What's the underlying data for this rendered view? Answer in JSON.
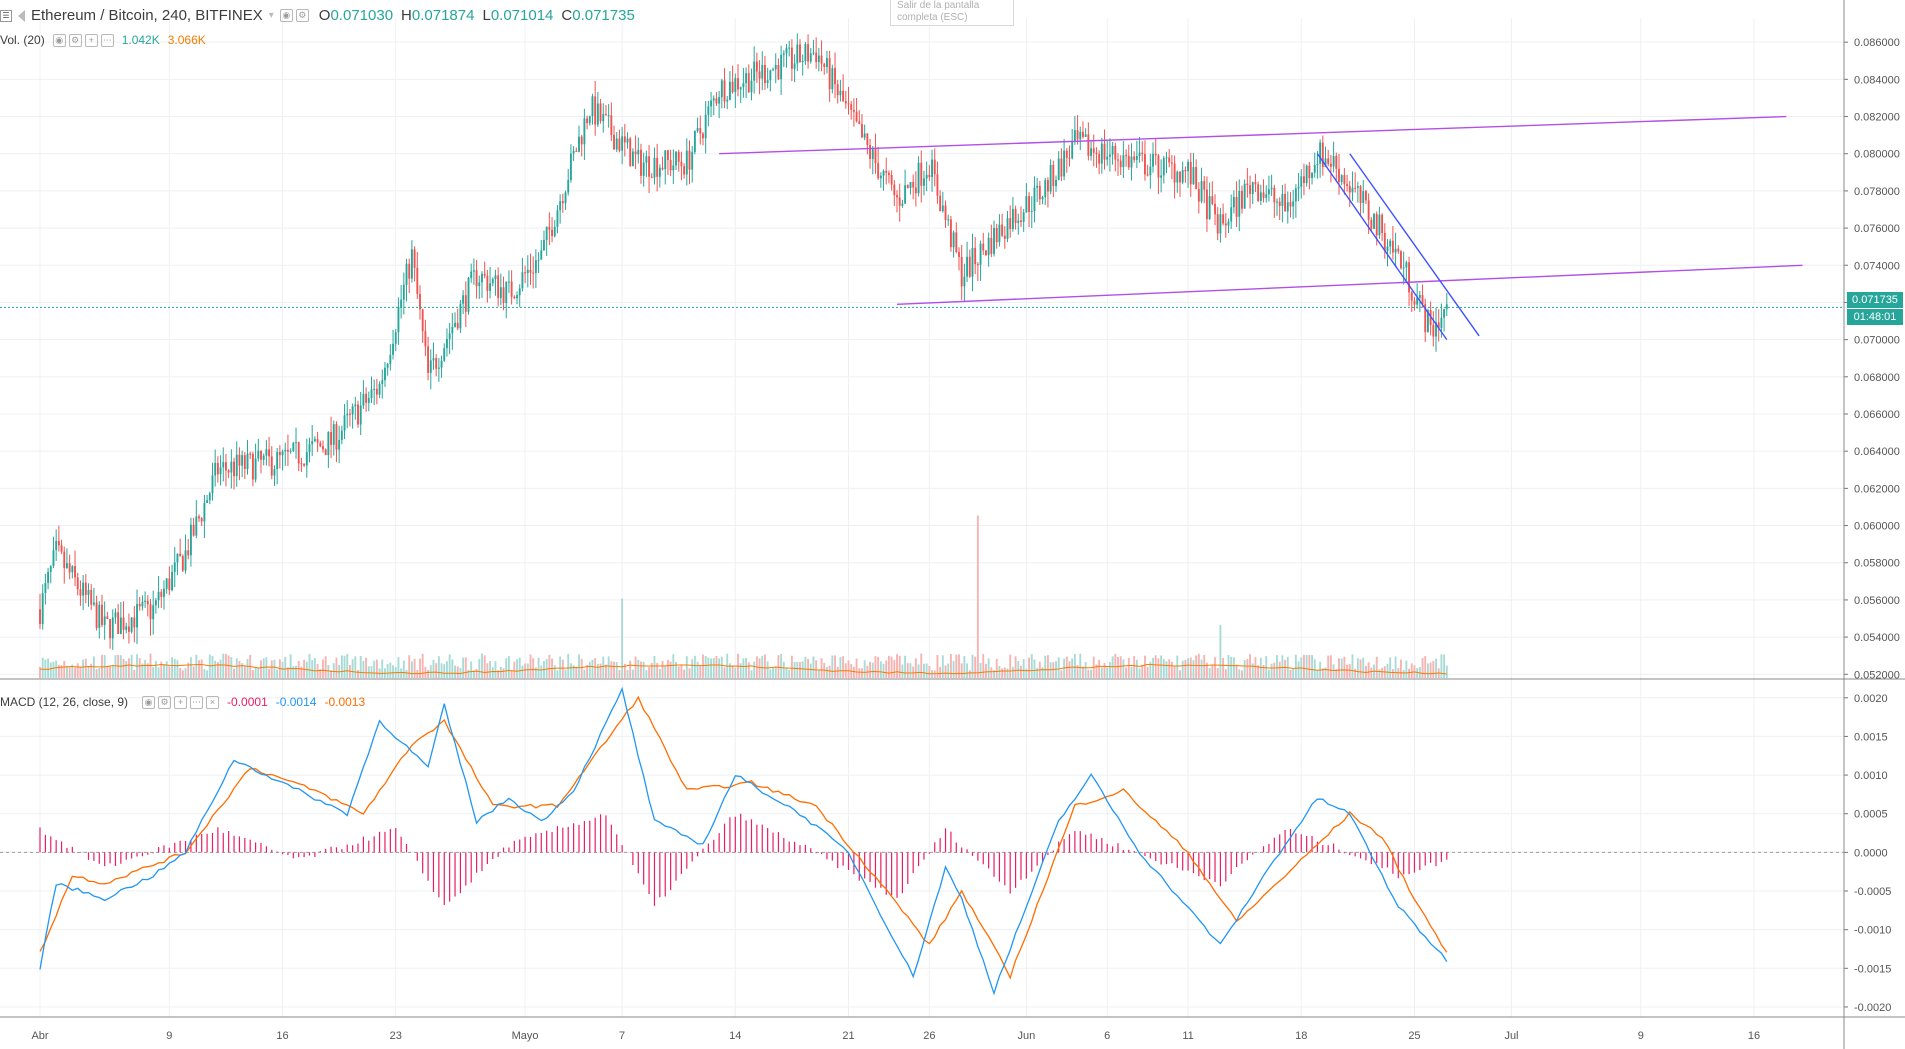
{
  "header": {
    "menu_icon": "hamburger-icon",
    "symbol": "Ethereum / Bitcoin, 240, BITFINEX",
    "ohlc": {
      "o_label": "O",
      "o": "0.071030",
      "h_label": "H",
      "h": "0.071874",
      "l_label": "L",
      "l": "0.071014",
      "c_label": "C",
      "c": "0.071735"
    }
  },
  "volume_legend": {
    "title": "Vol. (20)",
    "v1": "1.042K",
    "v2": "3.066K"
  },
  "macd_legend": {
    "title": "MACD (12, 26, close, 9)",
    "hist": "-0.0001",
    "macd": "-0.0014",
    "signal": "-0.0013"
  },
  "fullscreen_tooltip": {
    "line1": "Salir de la pantalla",
    "line2": "completa (ESC)"
  },
  "last_price": {
    "value": "0.071735",
    "countdown": "01:48:01"
  },
  "colors": {
    "up": "#26a69a",
    "down": "#ef5350",
    "trendline": "#b34ee8",
    "channel": "#3f51ff",
    "macd": "#2196f3",
    "signal": "#ff6d00",
    "histogram": "#e91e63",
    "grid": "#eef0f3"
  },
  "chart_data": [
    {
      "type": "candlestick",
      "title": "Ethereum / Bitcoin, 240, BITFINEX",
      "x_tick_labels": [
        "Abr",
        "9",
        "16",
        "23",
        "Mayo",
        "7",
        "14",
        "21",
        "26",
        "Jun",
        "6",
        "11",
        "18",
        "25",
        "Jul",
        "9",
        "16"
      ],
      "y_ticks": [
        "0.086000",
        "0.084000",
        "0.082000",
        "0.080000",
        "0.078000",
        "0.076000",
        "0.074000",
        "0.072000",
        "0.070000",
        "0.068000",
        "0.066000",
        "0.064000",
        "0.062000",
        "0.060000",
        "0.058000",
        "0.056000",
        "0.054000",
        "0.052000"
      ],
      "ylim": [
        0.0518,
        0.0873
      ],
      "grid": true,
      "trend_anchors_date_close": [
        [
          "Abr 1",
          0.0555
        ],
        [
          "Abr 2",
          0.0585
        ],
        [
          "Abr 5",
          0.0545
        ],
        [
          "Abr 8",
          0.0555
        ],
        [
          "Abr 10",
          0.0585
        ],
        [
          "Abr 12",
          0.063
        ],
        [
          "Abr 16",
          0.0635
        ],
        [
          "Abr 19",
          0.0645
        ],
        [
          "Abr 22",
          0.0675
        ],
        [
          "Abr 24",
          0.0745
        ],
        [
          "Abr 25",
          0.068
        ],
        [
          "Abr 28",
          0.0735
        ],
        [
          "Abr 30",
          0.0725
        ],
        [
          "May 2",
          0.0745
        ],
        [
          "May 5",
          0.0825
        ],
        [
          "May 8",
          0.0795
        ],
        [
          "May 11",
          0.0795
        ],
        [
          "May 13",
          0.0835
        ],
        [
          "May 16",
          0.0845
        ],
        [
          "May 19",
          0.0855
        ],
        [
          "May 22",
          0.0805
        ],
        [
          "May 24",
          0.0775
        ],
        [
          "May 26",
          0.0795
        ],
        [
          "May 28",
          0.0735
        ],
        [
          "May 31",
          0.0765
        ],
        [
          "Jun 2",
          0.078
        ],
        [
          "Jun 4",
          0.0805
        ],
        [
          "Jun 8",
          0.0795
        ],
        [
          "Jun 11",
          0.079
        ],
        [
          "Jun 13",
          0.076
        ],
        [
          "Jun 15",
          0.0785
        ],
        [
          "Jun 17",
          0.077
        ],
        [
          "Jun 19",
          0.08
        ],
        [
          "Jun 20",
          0.0795
        ],
        [
          "Jun 22",
          0.077
        ],
        [
          "Jun 24",
          0.0745
        ],
        [
          "Jun 26",
          0.0705
        ],
        [
          "Jun 27",
          0.0717
        ]
      ],
      "volume_spikes": [
        [
          "May 29",
          8600
        ],
        [
          "May 7",
          4200
        ],
        [
          "Jun 13",
          2800
        ]
      ],
      "annotations": [
        {
          "kind": "trend_line",
          "from": [
            "May 13",
            0.08
          ],
          "to": [
            "Jul 18",
            0.082
          ],
          "color": "#b34ee8"
        },
        {
          "kind": "trend_line",
          "from": [
            "May 24",
            0.0719
          ],
          "to": [
            "Jul 19",
            0.074
          ],
          "color": "#b34ee8"
        },
        {
          "kind": "channel_line",
          "from": [
            "Jun 19",
            0.08
          ],
          "to": [
            "Jun 27",
            0.07
          ],
          "color": "#3f51ff"
        },
        {
          "kind": "channel_line",
          "from": [
            "Jun 21",
            0.08
          ],
          "to": [
            "Jun 29",
            0.0702
          ],
          "color": "#3f51ff"
        }
      ],
      "last_price_line": 0.071735
    },
    {
      "type": "line",
      "title": "MACD (12, 26, close, 9)",
      "y_ticks": [
        "0.0020",
        "0.0015",
        "0.0010",
        "0.0005",
        "0.0000",
        "-0.0005",
        "-0.0010",
        "-0.0015",
        "-0.0020"
      ],
      "ylim": [
        -0.00213,
        0.00223
      ],
      "series": [
        {
          "name": "MACD",
          "anchors_date_value": [
            [
              "Abr 1",
              -0.0015
            ],
            [
              "Abr 2",
              -0.0004
            ],
            [
              "Abr 5",
              -0.0006
            ],
            [
              "Abr 8",
              -0.0003
            ],
            [
              "Abr 10",
              0.0
            ],
            [
              "Abr 13",
              0.0012
            ],
            [
              "Abr 16",
              0.0009
            ],
            [
              "Abr 20",
              0.0005
            ],
            [
              "Abr 22",
              0.0017
            ],
            [
              "Abr 25",
              0.0011
            ],
            [
              "Abr 26",
              0.0019
            ],
            [
              "Abr 28",
              0.0004
            ],
            [
              "Abr 30",
              0.0007
            ],
            [
              "May 2",
              0.0004
            ],
            [
              "May 4",
              0.0008
            ],
            [
              "May 7",
              0.0021
            ],
            [
              "May 9",
              0.0004
            ],
            [
              "May 12",
              0.0001
            ],
            [
              "May 14",
              0.001
            ],
            [
              "May 18",
              0.0005
            ],
            [
              "May 21",
              0.0
            ],
            [
              "May 25",
              -0.0016
            ],
            [
              "May 27",
              -0.0002
            ],
            [
              "May 28",
              -0.0006
            ],
            [
              "May 30",
              -0.0018
            ],
            [
              "Jun 3",
              0.0004
            ],
            [
              "Jun 5",
              0.001
            ],
            [
              "Jun 8",
              0.0
            ],
            [
              "Jun 13",
              -0.0012
            ],
            [
              "Jun 16",
              -0.0002
            ],
            [
              "Jun 19",
              0.0007
            ],
            [
              "Jun 21",
              0.0005
            ],
            [
              "Jun 24",
              -0.0007
            ],
            [
              "Jun 27",
              -0.0014
            ]
          ]
        },
        {
          "name": "Signal",
          "anchors_date_value": [
            [
              "Abr 1",
              -0.0013
            ],
            [
              "Abr 3",
              -0.0003
            ],
            [
              "Abr 5",
              -0.0004
            ],
            [
              "Abr 10",
              0.0
            ],
            [
              "Abr 14",
              0.0011
            ],
            [
              "Abr 18",
              0.0008
            ],
            [
              "Abr 21",
              0.0005
            ],
            [
              "Abr 24",
              0.0014
            ],
            [
              "Abr 26",
              0.0017
            ],
            [
              "Abr 29",
              0.0006
            ],
            [
              "May 3",
              0.0006
            ],
            [
              "May 8",
              0.002
            ],
            [
              "May 11",
              0.0008
            ],
            [
              "May 15",
              0.0009
            ],
            [
              "May 19",
              0.0006
            ],
            [
              "May 23",
              -0.0004
            ],
            [
              "May 26",
              -0.0012
            ],
            [
              "May 28",
              -0.0005
            ],
            [
              "May 31",
              -0.0016
            ],
            [
              "Jun 4",
              0.0006
            ],
            [
              "Jun 7",
              0.0008
            ],
            [
              "Jun 11",
              0.0
            ],
            [
              "Jun 14",
              -0.0009
            ],
            [
              "Jun 17",
              -0.0003
            ],
            [
              "Jun 21",
              0.0005
            ],
            [
              "Jun 23",
              0.0002
            ],
            [
              "Jun 25",
              -0.0006
            ],
            [
              "Jun 27",
              -0.0013
            ]
          ]
        },
        {
          "name": "Histogram",
          "anchors_date_value": [
            [
              "Abr 1",
              0.0003
            ],
            [
              "Abr 5",
              -0.0002
            ],
            [
              "Abr 12",
              0.0003
            ],
            [
              "Abr 17",
              -0.0001
            ],
            [
              "Abr 23",
              0.0003
            ],
            [
              "Abr 26",
              -0.0007
            ],
            [
              "Abr 30",
              0.0001
            ],
            [
              "May 6",
              0.0005
            ],
            [
              "May 9",
              -0.0007
            ],
            [
              "May 14",
              0.0005
            ],
            [
              "May 18",
              0.0001
            ],
            [
              "May 24",
              -0.0006
            ],
            [
              "May 27",
              0.0003
            ],
            [
              "May 31",
              -0.0005
            ],
            [
              "Jun 4",
              0.0003
            ],
            [
              "Jun 9",
              -0.0001
            ],
            [
              "Jun 13",
              -0.0004
            ],
            [
              "Jun 17",
              0.0003
            ],
            [
              "Jun 21",
              0.0
            ],
            [
              "Jun 24",
              -0.0003
            ],
            [
              "Jun 27",
              -0.0001
            ]
          ]
        }
      ]
    }
  ]
}
